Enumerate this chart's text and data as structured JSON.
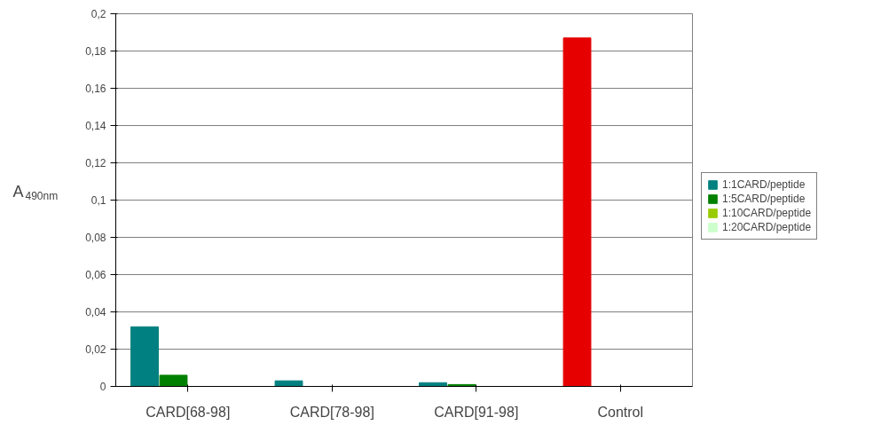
{
  "chart_data": {
    "type": "bar",
    "ylabel": "A$_{490nm}$",
    "categories": [
      "CARD[68-98]",
      "CARD[78-98]",
      "CARD[91-98]",
      "Control"
    ],
    "series": [
      {
        "name": "1:1CARD/peptide",
        "color": "#008080",
        "colors": [
          null,
          null,
          null,
          "#e60000"
        ],
        "values": [
          0.032,
          0.003,
          0.002,
          0.187
        ]
      },
      {
        "name": "1:5CARD/peptide",
        "color": "#008000",
        "values": [
          0.006,
          0,
          0.001,
          null
        ]
      },
      {
        "name": "1:10CARD/peptide",
        "color": "#99cc00",
        "values": [
          0,
          0,
          0,
          null
        ]
      },
      {
        "name": "1:20CARD/peptide",
        "color": "#ccffcc",
        "values": [
          0,
          0,
          0,
          null
        ]
      }
    ],
    "ylim": [
      0,
      0.2
    ],
    "yticks": [
      0,
      {
        "value": 0.02,
        "label": "0,02"
      },
      {
        "value": 0.04,
        "label": "0,04"
      },
      {
        "value": 0.06,
        "label": "0,06"
      },
      {
        "value": 0.08,
        "label": "0,08"
      },
      {
        "value": 0.1,
        "label": "0,1"
      },
      {
        "value": 0.12,
        "label": "0,12"
      },
      {
        "value": 0.14,
        "label": "0,14"
      },
      {
        "value": 0.16,
        "label": "0,16"
      },
      {
        "value": 0.18,
        "label": "0,18"
      },
      {
        "value": 0.2,
        "label": "0,2"
      }
    ],
    "grid": "y",
    "legend": "right"
  }
}
